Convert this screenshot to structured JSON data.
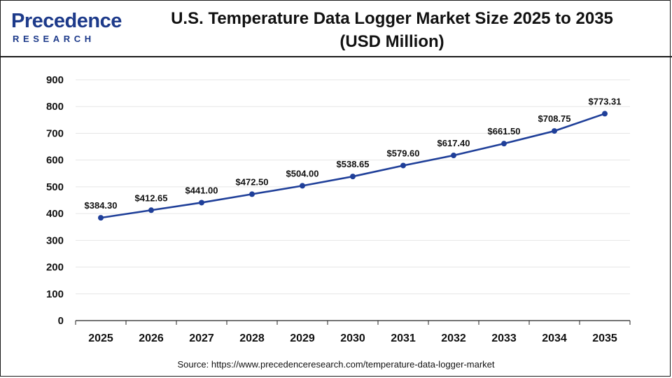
{
  "header": {
    "logo_text_top": "Precedence",
    "logo_text_bottom": "RESEARCH",
    "title_line1": "U.S. Temperature Data Logger Market Size 2025 to 2035",
    "title_line2": "(USD Million)"
  },
  "colors": {
    "line": "#1f3f99",
    "marker": "#1f3f99",
    "grid": "#e6e6e6",
    "axis": "#222222",
    "brand": "#1d3a8a"
  },
  "chart_data": {
    "type": "line",
    "title": "U.S. Temperature Data Logger Market Size 2025 to 2035 (USD Million)",
    "xlabel": "",
    "ylabel": "",
    "categories": [
      "2025",
      "2026",
      "2027",
      "2028",
      "2029",
      "2030",
      "2031",
      "2032",
      "2033",
      "2034",
      "2035"
    ],
    "series": [
      {
        "values": [
          384.3,
          412.65,
          441.0,
          472.5,
          504.0,
          538.65,
          579.6,
          617.4,
          661.5,
          708.75,
          773.31
        ],
        "labels": [
          "$384.30",
          "$412.65",
          "$441.00",
          "$472.50",
          "$504.00",
          "$538.65",
          "$579.60",
          "$617.40",
          "$661.50",
          "$708.75",
          "$773.31"
        ]
      }
    ],
    "ylim": [
      0,
      900
    ],
    "yticks": [
      0,
      100,
      200,
      300,
      400,
      500,
      600,
      700,
      800,
      900
    ],
    "grid": true,
    "legend": "none"
  },
  "footer": {
    "source": "Source: https://www.precedenceresearch.com/temperature-data-logger-market"
  }
}
